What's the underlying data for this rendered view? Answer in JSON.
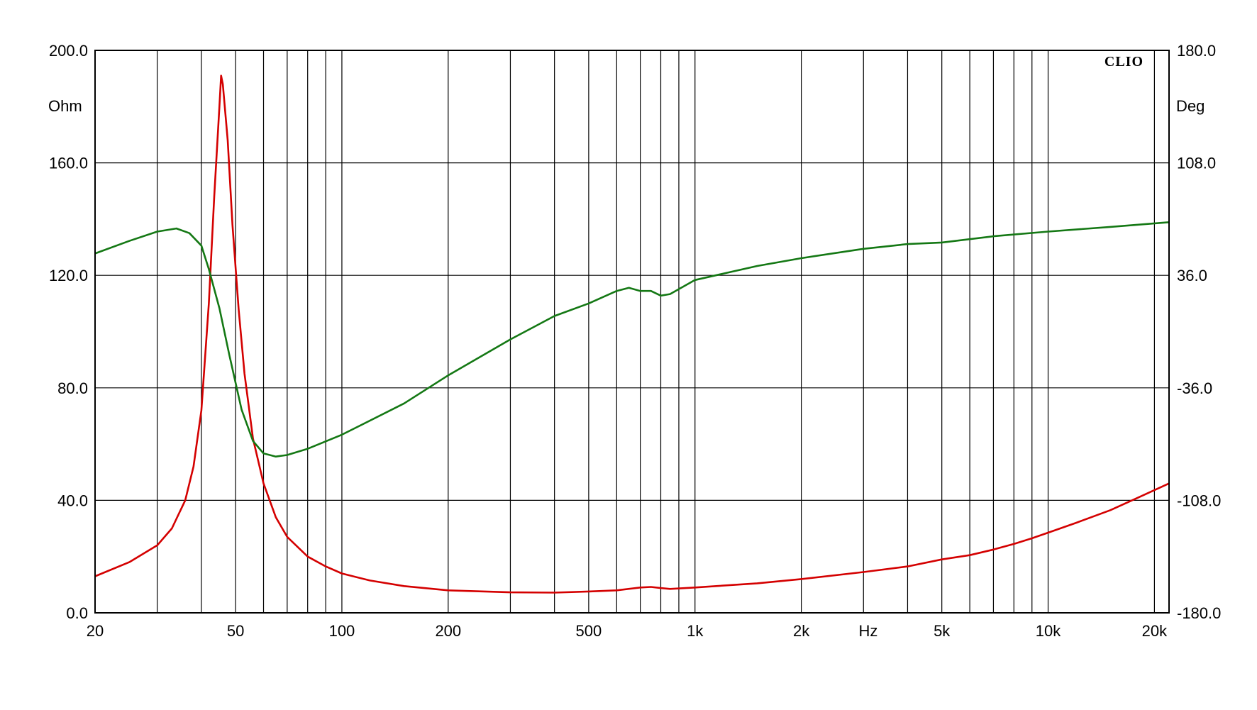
{
  "chart_data": {
    "type": "line",
    "brand": "CLIO",
    "x_scale": "log",
    "xlim": [
      20,
      22000
    ],
    "ylim_left": [
      0,
      200
    ],
    "ylim_right": [
      -180,
      180
    ],
    "grid": true,
    "left_unit": "Ohm",
    "right_unit": "Deg",
    "x_unit": "Hz",
    "y_ticks_left": [
      {
        "value": 0,
        "label": "0.0"
      },
      {
        "value": 40,
        "label": "40.0"
      },
      {
        "value": 80,
        "label": "80.0"
      },
      {
        "value": 120,
        "label": "120.0"
      },
      {
        "value": 160,
        "label": "160.0"
      },
      {
        "value": 200,
        "label": "200.0"
      }
    ],
    "y_ticks_right": [
      {
        "value": -180,
        "label": "-180.0"
      },
      {
        "value": -108,
        "label": "-108.0"
      },
      {
        "value": -36,
        "label": "-36.0"
      },
      {
        "value": 36,
        "label": "36.0"
      },
      {
        "value": 108,
        "label": "108.0"
      },
      {
        "value": 180,
        "label": "180.0"
      }
    ],
    "x_ticks": [
      {
        "value": 20,
        "label": "20"
      },
      {
        "value": 50,
        "label": "50"
      },
      {
        "value": 100,
        "label": "100"
      },
      {
        "value": 200,
        "label": "200"
      },
      {
        "value": 500,
        "label": "500"
      },
      {
        "value": 1000,
        "label": "1k"
      },
      {
        "value": 2000,
        "label": "2k"
      },
      {
        "value": 5000,
        "label": "5k"
      },
      {
        "value": 10000,
        "label": "10k"
      },
      {
        "value": 20000,
        "label": "20k"
      }
    ],
    "x_grid": [
      30,
      40,
      50,
      60,
      70,
      80,
      90,
      100,
      200,
      300,
      400,
      500,
      600,
      700,
      800,
      900,
      1000,
      2000,
      3000,
      4000,
      5000,
      6000,
      7000,
      8000,
      9000,
      10000,
      20000
    ],
    "series": [
      {
        "axis": "left",
        "color": "#d40000",
        "points": [
          [
            20,
            13
          ],
          [
            25,
            18
          ],
          [
            30,
            24
          ],
          [
            33,
            30
          ],
          [
            36,
            40
          ],
          [
            38,
            52
          ],
          [
            40,
            72
          ],
          [
            42,
            110
          ],
          [
            43.5,
            148
          ],
          [
            45,
            180
          ],
          [
            45.5,
            191
          ],
          [
            46,
            188
          ],
          [
            47.5,
            168
          ],
          [
            49,
            138
          ],
          [
            51,
            108
          ],
          [
            53,
            85
          ],
          [
            56,
            62
          ],
          [
            60,
            46
          ],
          [
            65,
            34
          ],
          [
            70,
            27
          ],
          [
            80,
            20
          ],
          [
            90,
            16.5
          ],
          [
            100,
            14
          ],
          [
            120,
            11.5
          ],
          [
            150,
            9.5
          ],
          [
            200,
            8
          ],
          [
            300,
            7.3
          ],
          [
            400,
            7.2
          ],
          [
            500,
            7.6
          ],
          [
            600,
            8
          ],
          [
            700,
            9
          ],
          [
            750,
            9.2
          ],
          [
            800,
            8.8
          ],
          [
            850,
            8.5
          ],
          [
            1000,
            9
          ],
          [
            1500,
            10.5
          ],
          [
            2000,
            12
          ],
          [
            3000,
            14.5
          ],
          [
            4000,
            16.5
          ],
          [
            5000,
            19
          ],
          [
            6000,
            20.5
          ],
          [
            7000,
            22.5
          ],
          [
            8000,
            24.5
          ],
          [
            9000,
            26.5
          ],
          [
            10000,
            28.5
          ],
          [
            12000,
            32
          ],
          [
            15000,
            36.5
          ],
          [
            18000,
            41
          ],
          [
            22000,
            46
          ]
        ]
      },
      {
        "axis": "right",
        "color": "#147814",
        "points": [
          [
            20,
            50
          ],
          [
            25,
            58
          ],
          [
            30,
            64
          ],
          [
            34,
            66
          ],
          [
            37,
            63
          ],
          [
            40,
            55
          ],
          [
            42,
            40
          ],
          [
            45,
            15
          ],
          [
            48,
            -15
          ],
          [
            52,
            -50
          ],
          [
            56,
            -70
          ],
          [
            60,
            -78
          ],
          [
            65,
            -80
          ],
          [
            70,
            -79
          ],
          [
            80,
            -75
          ],
          [
            100,
            -66
          ],
          [
            150,
            -46
          ],
          [
            200,
            -28
          ],
          [
            300,
            -5
          ],
          [
            400,
            10
          ],
          [
            500,
            18
          ],
          [
            600,
            26
          ],
          [
            650,
            28
          ],
          [
            700,
            26
          ],
          [
            750,
            26
          ],
          [
            800,
            23
          ],
          [
            850,
            24
          ],
          [
            1000,
            33
          ],
          [
            1500,
            42
          ],
          [
            2000,
            47
          ],
          [
            3000,
            53
          ],
          [
            4000,
            56
          ],
          [
            5000,
            57
          ],
          [
            7000,
            61
          ],
          [
            10000,
            64
          ],
          [
            15000,
            67
          ],
          [
            22000,
            70
          ]
        ]
      }
    ]
  }
}
